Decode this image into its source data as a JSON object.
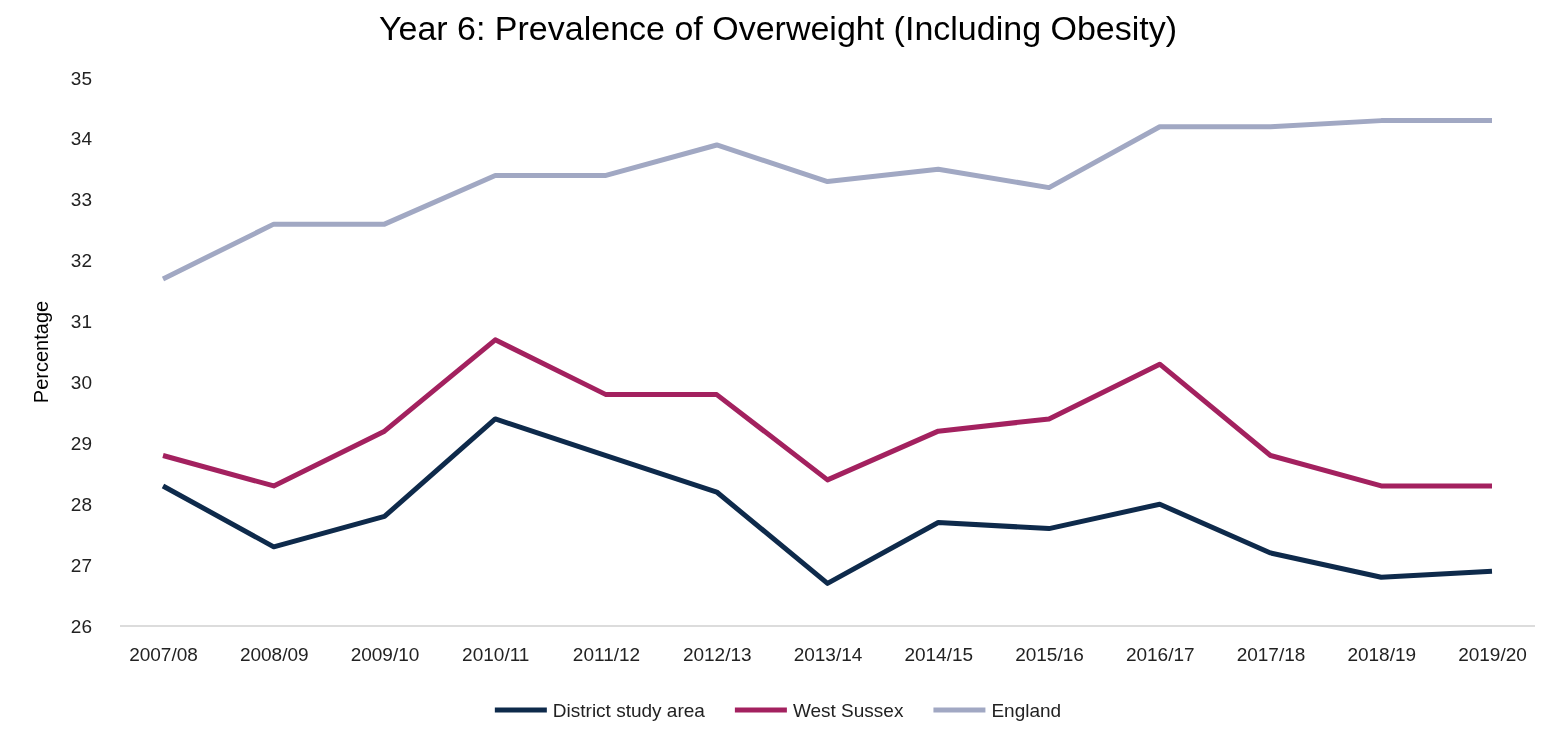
{
  "chart_data": {
    "type": "line",
    "title": "Year 6: Prevalence of Overweight (Including Obesity)",
    "ylabel": "Percentage",
    "categories": [
      "2007/08",
      "2008/09",
      "2009/10",
      "2010/11",
      "2011/12",
      "2012/13",
      "2013/14",
      "2014/15",
      "2015/16",
      "2016/17",
      "2017/18",
      "2018/19",
      "2019/20"
    ],
    "series": [
      {
        "name": "District study area",
        "color": "#0e2a4b",
        "values": [
          28.3,
          27.3,
          27.8,
          29.4,
          28.8,
          28.2,
          26.7,
          27.7,
          27.6,
          28.0,
          27.2,
          26.8,
          26.9
        ]
      },
      {
        "name": "West Sussex",
        "color": "#a3215f",
        "values": [
          28.8,
          28.3,
          29.2,
          30.7,
          29.8,
          29.8,
          28.4,
          29.2,
          29.4,
          30.3,
          28.8,
          28.3,
          28.3
        ]
      },
      {
        "name": "England",
        "color": "#a1a8c3",
        "values": [
          31.7,
          32.6,
          32.6,
          33.4,
          33.4,
          33.9,
          33.3,
          33.5,
          33.2,
          34.2,
          34.2,
          34.3,
          34.3
        ]
      }
    ],
    "ylim": [
      26,
      35
    ],
    "yticks": [
      26,
      27,
      28,
      29,
      30,
      31,
      32,
      33,
      34,
      35
    ],
    "grid": false,
    "legend": "bottom",
    "marker": "none",
    "line_style": "solid"
  }
}
